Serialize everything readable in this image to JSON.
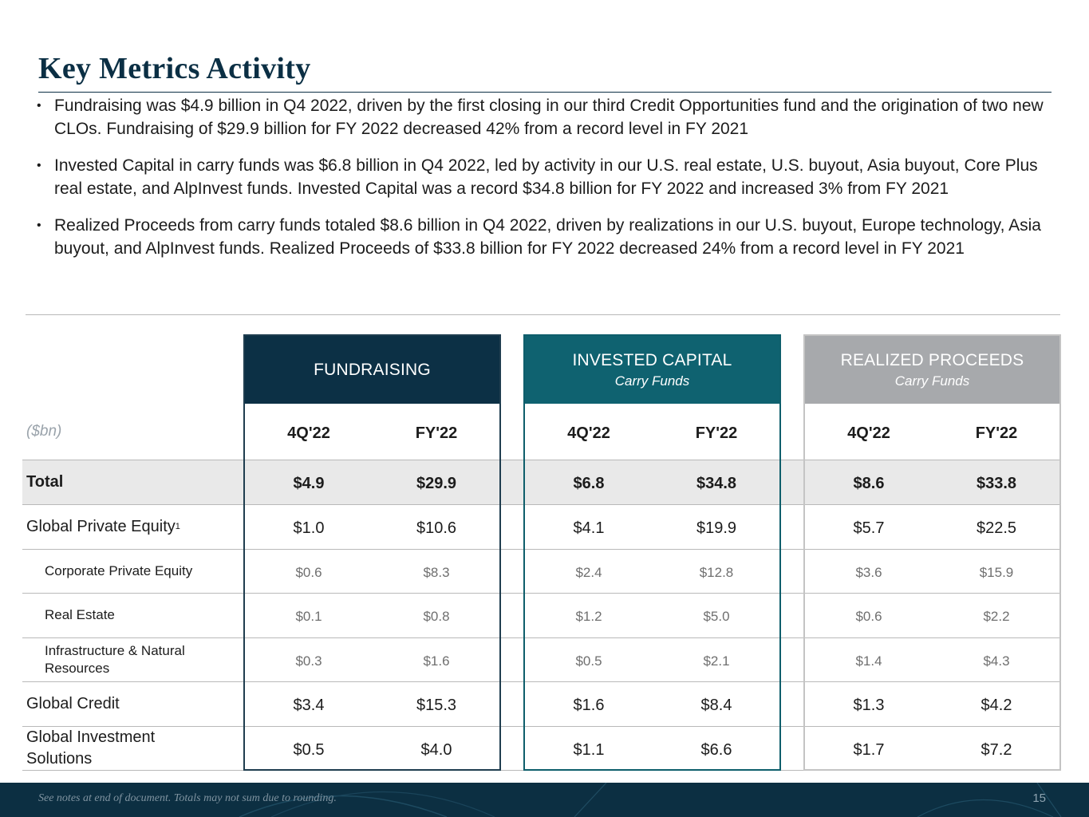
{
  "page": {
    "title": "Key Metrics Activity",
    "bullets": [
      "Fundraising was $4.9 billion in Q4 2022, driven by the first closing in our third Credit Opportunities fund and the origination of two new CLOs. Fundraising of $29.9 billion for FY 2022 decreased 42% from a record level in FY 2021",
      "Invested Capital in carry funds was $6.8 billion in Q4 2022, led by activity in our U.S. real estate, U.S. buyout, Asia buyout, Core Plus real estate, and AlpInvest funds. Invested Capital was a record $34.8 billion for FY 2022 and increased 3% from FY 2021",
      "Realized Proceeds from carry funds totaled $8.6 billion in Q4 2022, driven by realizations in our U.S. buyout, Europe technology, Asia buyout, and AlpInvest funds. Realized Proceeds of $33.8 billion for FY 2022 decreased 24% from a record level in FY 2021"
    ],
    "bullet_symbol": "•"
  },
  "table": {
    "unit_label": "($bn)",
    "rows": [
      {
        "label": "Total",
        "sup": ""
      },
      {
        "label": "Global Private Equity",
        "sup": "1"
      },
      {
        "label": "Corporate Private Equity",
        "sup": ""
      },
      {
        "label": "Real Estate",
        "sup": ""
      },
      {
        "label": "Infrastructure & Natural Resources",
        "sup": ""
      },
      {
        "label": "Global Credit",
        "sup": ""
      },
      {
        "label": "Global Investment Solutions",
        "sup": ""
      }
    ],
    "panels": [
      {
        "title": "FUNDRAISING",
        "subtitle": "",
        "col1": "4Q'22",
        "col2": "FY'22",
        "values": [
          [
            "$4.9",
            "$29.9"
          ],
          [
            "$1.0",
            "$10.6"
          ],
          [
            "$0.6",
            "$8.3"
          ],
          [
            "$0.1",
            "$0.8"
          ],
          [
            "$0.3",
            "$1.6"
          ],
          [
            "$3.4",
            "$15.3"
          ],
          [
            "$0.5",
            "$4.0"
          ]
        ]
      },
      {
        "title": "INVESTED CAPITAL",
        "subtitle": "Carry Funds",
        "col1": "4Q'22",
        "col2": "FY'22",
        "values": [
          [
            "$6.8",
            "$34.8"
          ],
          [
            "$4.1",
            "$19.9"
          ],
          [
            "$2.4",
            "$12.8"
          ],
          [
            "$1.2",
            "$5.0"
          ],
          [
            "$0.5",
            "$2.1"
          ],
          [
            "$1.6",
            "$8.4"
          ],
          [
            "$1.1",
            "$6.6"
          ]
        ]
      },
      {
        "title": "REALIZED PROCEEDS",
        "subtitle": "Carry Funds",
        "col1": "4Q'22",
        "col2": "FY'22",
        "values": [
          [
            "$8.6",
            "$33.8"
          ],
          [
            "$5.7",
            "$22.5"
          ],
          [
            "$3.6",
            "$15.9"
          ],
          [
            "$0.6",
            "$2.2"
          ],
          [
            "$1.4",
            "$4.3"
          ],
          [
            "$1.3",
            "$4.2"
          ],
          [
            "$1.7",
            "$7.2"
          ]
        ]
      }
    ]
  },
  "footer": {
    "note": "See notes at end of document. Totals may not sum due to rounding.",
    "page_number": "15"
  }
}
